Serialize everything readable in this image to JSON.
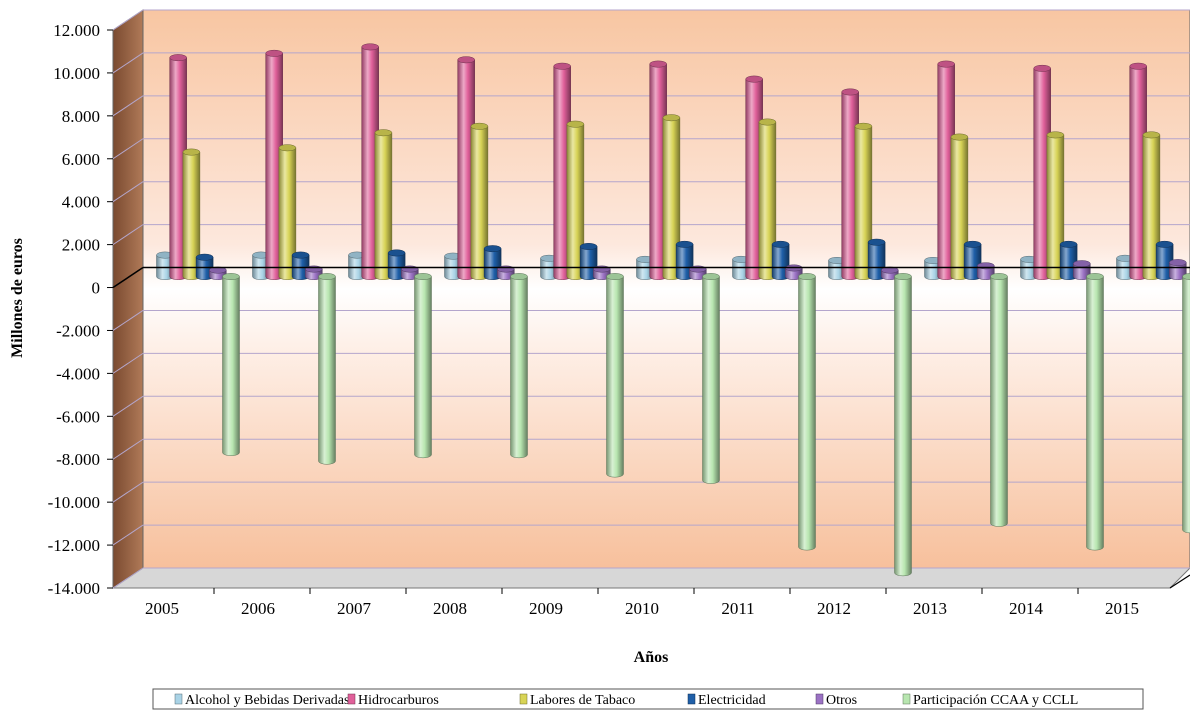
{
  "chart_data": {
    "type": "bar",
    "xlabel": "Años",
    "ylabel": "Millones de euros",
    "ylim": [
      -14000,
      12000
    ],
    "y_tick_labels": [
      "12.000",
      "10.000",
      "8.000",
      "6.000",
      "4.000",
      "2.000",
      "0",
      "-2.000",
      "-4.000",
      "-6.000",
      "-8.000",
      "-10.000",
      "-12.000",
      "-14.000"
    ],
    "y_tick_values": [
      12000,
      10000,
      8000,
      6000,
      4000,
      2000,
      0,
      -2000,
      -4000,
      -6000,
      -8000,
      -10000,
      -12000,
      -14000
    ],
    "categories": [
      "2005",
      "2006",
      "2007",
      "2008",
      "2009",
      "2010",
      "2011",
      "2012",
      "2013",
      "2014",
      "2015"
    ],
    "grid": true,
    "legend_position": "bottom",
    "series": [
      {
        "name": "Alcohol y Bebidas Derivadas",
        "color": "#a9d3e6",
        "values": [
          1000,
          1000,
          1000,
          950,
          850,
          800,
          800,
          750,
          750,
          800,
          850
        ]
      },
      {
        "name": "Hidrocarburos",
        "color": "#e0609a",
        "values": [
          10200,
          10400,
          10700,
          10100,
          9800,
          9900,
          9200,
          8600,
          9900,
          9700,
          9800
        ]
      },
      {
        "name": "Labores de Tabaco",
        "color": "#d8d456",
        "values": [
          5800,
          6000,
          6700,
          7000,
          7100,
          7400,
          7200,
          7000,
          6500,
          6600,
          6600
        ]
      },
      {
        "name": "Electricidad",
        "color": "#1f5fa8",
        "values": [
          900,
          1000,
          1100,
          1300,
          1400,
          1500,
          1500,
          1600,
          1500,
          1500,
          1500
        ]
      },
      {
        "name": "Otros",
        "color": "#9b72c4",
        "values": [
          300,
          350,
          350,
          350,
          350,
          350,
          400,
          300,
          500,
          600,
          650
        ]
      },
      {
        "name": "Participación CCAA y  CCLL",
        "color": "#b8e6b0",
        "values": [
          -8200,
          -8600,
          -8300,
          -8300,
          -9200,
          -9500,
          -12600,
          -13800,
          -11500,
          -12600,
          -11800
        ]
      }
    ]
  }
}
